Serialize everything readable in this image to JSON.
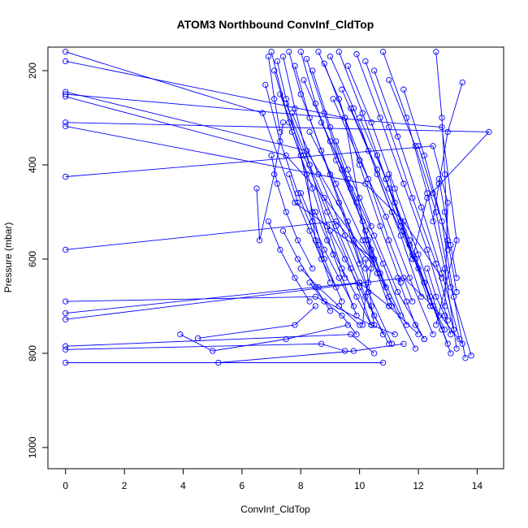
{
  "chart_data": {
    "type": "line",
    "title": "ATOM3 Northbound ConvInf_CldTop",
    "xlabel": "ConvInf_CldTop",
    "ylabel": "Pressure (mbar)",
    "xlim": [
      -0.6,
      14.9
    ],
    "ylim": [
      1045,
      150
    ],
    "y_reversed": true,
    "x_ticks": [
      0,
      2,
      4,
      6,
      8,
      10,
      12,
      14
    ],
    "y_ticks": [
      200,
      400,
      600,
      800,
      1000
    ],
    "grid": false,
    "legend": "none",
    "marker": "open-circle",
    "line_color": "#0000ff",
    "series": [
      {
        "x": [
          0,
          6.7,
          7.8,
          10.5
        ],
        "y": [
          160,
          290,
          480,
          600
        ]
      },
      {
        "x": [
          0,
          9.5,
          10.2,
          11.0
        ],
        "y": [
          180,
          300,
          560,
          700
        ]
      },
      {
        "x": [
          0,
          8.2,
          9.6,
          10.2
        ],
        "y": [
          245,
          370,
          520,
          620
        ]
      },
      {
        "x": [
          0,
          12.8,
          13.3,
          12.6
        ],
        "y": [
          250,
          320,
          560,
          740
        ]
      },
      {
        "x": [
          0,
          7.5,
          8.8,
          10.4
        ],
        "y": [
          255,
          380,
          470,
          600
        ]
      },
      {
        "x": [
          0,
          14.4,
          12.3,
          11.8
        ],
        "y": [
          310,
          330,
          470,
          600
        ]
      },
      {
        "x": [
          0,
          10.2,
          11.5,
          12.8
        ],
        "y": [
          318,
          440,
          520,
          640
        ]
      },
      {
        "x": [
          0,
          12.5,
          13.0,
          12.9
        ],
        "y": [
          425,
          360,
          480,
          700
        ]
      },
      {
        "x": [
          0,
          9.2,
          10.7,
          11.4
        ],
        "y": [
          580,
          520,
          630,
          720
        ]
      },
      {
        "x": [
          0,
          8.5,
          10.4,
          11.2
        ],
        "y": [
          690,
          680,
          740,
          760
        ]
      },
      {
        "x": [
          0,
          10.0,
          11.0,
          12.0
        ],
        "y": [
          715,
          650,
          700,
          760
        ]
      },
      {
        "x": [
          0,
          11.5,
          12.5,
          13.5
        ],
        "y": [
          728,
          640,
          700,
          780
        ]
      },
      {
        "x": [
          0,
          9.7,
          10.5
        ],
        "y": [
          785,
          760,
          800
        ]
      },
      {
        "x": [
          0,
          8.7,
          9.5
        ],
        "y": [
          792,
          780,
          795
        ]
      },
      {
        "x": [
          0,
          10.8
        ],
        "y": [
          820,
          820
        ]
      },
      {
        "x": [
          5.2,
          9.8,
          11.5
        ],
        "y": [
          820,
          795,
          780
        ]
      },
      {
        "x": [
          3.9,
          5.0,
          7.5,
          9.6
        ],
        "y": [
          760,
          795,
          770,
          740
        ]
      },
      {
        "x": [
          4.5,
          7.8,
          8.5
        ],
        "y": [
          768,
          740,
          700
        ]
      },
      {
        "x": [
          6.5,
          6.6,
          7.1,
          7.4
        ],
        "y": [
          450,
          560,
          420,
          310
        ]
      },
      {
        "x": [
          6.9,
          7.1,
          7.3
        ],
        "y": [
          170,
          260,
          330
        ]
      },
      {
        "x": [
          7.0,
          7.6,
          8.2,
          8.5,
          9.0
        ],
        "y": [
          160,
          310,
          420,
          560,
          650
        ]
      },
      {
        "x": [
          7.2,
          7.5,
          8.0,
          8.4,
          8.8
        ],
        "y": [
          180,
          260,
          380,
          500,
          600
        ]
      },
      {
        "x": [
          7.4,
          7.8,
          8.3,
          8.9,
          9.5
        ],
        "y": [
          170,
          280,
          400,
          530,
          640
        ]
      },
      {
        "x": [
          7.6,
          8.0,
          8.7,
          9.3,
          10.0
        ],
        "y": [
          160,
          250,
          370,
          480,
          610
        ]
      },
      {
        "x": [
          7.8,
          8.3,
          9.0,
          9.8,
          10.3
        ],
        "y": [
          190,
          300,
          420,
          560,
          670
        ]
      },
      {
        "x": [
          8.0,
          8.5,
          9.2,
          10.1,
          10.6
        ],
        "y": [
          160,
          270,
          390,
          520,
          630
        ]
      },
      {
        "x": [
          8.2,
          8.8,
          9.4,
          10.2,
          10.9
        ],
        "y": [
          175,
          290,
          410,
          540,
          660
        ]
      },
      {
        "x": [
          8.4,
          9.0,
          9.7,
          10.4,
          11.1
        ],
        "y": [
          200,
          320,
          450,
          580,
          700
        ]
      },
      {
        "x": [
          8.6,
          9.3,
          10.0,
          10.7,
          11.4
        ],
        "y": [
          160,
          260,
          400,
          530,
          650
        ]
      },
      {
        "x": [
          8.8,
          9.5,
          10.3,
          11.0,
          11.8
        ],
        "y": [
          185,
          300,
          430,
          560,
          690
        ]
      },
      {
        "x": [
          9.0,
          9.8,
          10.6,
          11.4,
          12.1
        ],
        "y": [
          170,
          280,
          420,
          550,
          680
        ]
      },
      {
        "x": [
          9.3,
          10.1,
          10.9,
          11.7,
          12.4
        ],
        "y": [
          160,
          290,
          430,
          570,
          700
        ]
      },
      {
        "x": [
          9.6,
          10.4,
          11.2,
          12.0,
          12.7
        ],
        "y": [
          190,
          310,
          450,
          590,
          720
        ]
      },
      {
        "x": [
          9.9,
          10.7,
          11.5,
          12.3,
          13.0
        ],
        "y": [
          165,
          300,
          440,
          580,
          730
        ]
      },
      {
        "x": [
          10.2,
          11.0,
          11.8,
          12.6,
          13.2
        ],
        "y": [
          180,
          320,
          470,
          610,
          750
        ]
      },
      {
        "x": [
          10.5,
          11.3,
          12.1,
          12.8,
          13.4
        ],
        "y": [
          200,
          340,
          490,
          630,
          770
        ]
      },
      {
        "x": [
          10.8,
          11.6,
          12.3,
          12.9,
          13.3
        ],
        "y": [
          160,
          300,
          460,
          620,
          790
        ]
      },
      {
        "x": [
          11.0,
          11.9,
          12.6,
          13.1,
          13.8
        ],
        "y": [
          220,
          360,
          500,
          660,
          805
        ]
      },
      {
        "x": [
          11.5,
          12.2,
          12.8,
          13.2,
          13.6
        ],
        "y": [
          240,
          380,
          520,
          680,
          810
        ]
      },
      {
        "x": [
          12.6,
          12.8,
          12.9,
          13.0
        ],
        "y": [
          160,
          300,
          420,
          580
        ]
      },
      {
        "x": [
          13.5,
          13.0,
          12.7,
          12.5
        ],
        "y": [
          225,
          330,
          440,
          520
        ]
      },
      {
        "x": [
          12.0,
          12.5,
          13.0,
          13.3
        ],
        "y": [
          360,
          460,
          560,
          670
        ]
      },
      {
        "x": [
          6.8,
          7.3,
          7.9,
          8.6,
          9.4
        ],
        "y": [
          230,
          350,
          460,
          570,
          690
        ]
      },
      {
        "x": [
          7.1,
          7.7,
          8.4,
          9.1,
          9.9
        ],
        "y": [
          200,
          330,
          450,
          590,
          720
        ]
      },
      {
        "x": [
          7.3,
          8.1,
          8.9,
          9.7,
          10.4
        ],
        "y": [
          250,
          380,
          500,
          620,
          740
        ]
      },
      {
        "x": [
          7.5,
          8.3,
          9.2,
          10.0,
          10.8
        ],
        "y": [
          270,
          400,
          530,
          650,
          760
        ]
      },
      {
        "x": [
          7.7,
          8.6,
          9.5,
          10.3,
          11.1
        ],
        "y": [
          290,
          420,
          550,
          670,
          780
        ]
      },
      {
        "x": [
          8.1,
          9.0,
          9.9,
          10.8,
          11.6
        ],
        "y": [
          220,
          350,
          480,
          610,
          740
        ]
      },
      {
        "x": [
          8.3,
          9.2,
          10.1,
          11.0,
          11.9
        ],
        "y": [
          330,
          440,
          560,
          680,
          790
        ]
      },
      {
        "x": [
          8.7,
          9.6,
          10.5,
          11.3,
          12.2
        ],
        "y": [
          310,
          430,
          550,
          670,
          770
        ]
      },
      {
        "x": [
          9.1,
          10.0,
          10.9,
          11.7,
          12.5
        ],
        "y": [
          260,
          390,
          510,
          640,
          760
        ]
      },
      {
        "x": [
          9.4,
          10.3,
          11.1,
          12.0,
          12.8
        ],
        "y": [
          240,
          370,
          500,
          620,
          750
        ]
      },
      {
        "x": [
          9.7,
          10.6,
          11.4,
          12.2,
          13.0
        ],
        "y": [
          280,
          410,
          530,
          650,
          780
        ]
      },
      {
        "x": [
          10.0,
          10.9,
          11.7,
          12.4,
          13.1
        ],
        "y": [
          300,
          430,
          560,
          680,
          800
        ]
      },
      {
        "x": [
          7.0,
          7.2,
          7.5,
          7.9,
          8.4
        ],
        "y": [
          380,
          440,
          500,
          560,
          620
        ]
      },
      {
        "x": [
          7.6,
          7.9,
          8.3,
          8.7,
          9.2
        ],
        "y": [
          420,
          480,
          540,
          600,
          660
        ]
      },
      {
        "x": [
          8.0,
          8.4,
          8.8,
          9.3,
          9.8
        ],
        "y": [
          460,
          520,
          580,
          640,
          700
        ]
      },
      {
        "x": [
          8.5,
          8.9,
          9.4,
          9.9,
          10.4
        ],
        "y": [
          500,
          560,
          620,
          680,
          740
        ]
      },
      {
        "x": [
          9.0,
          9.5,
          10.0,
          10.5,
          11.0
        ],
        "y": [
          540,
          600,
          660,
          720,
          780
        ]
      },
      {
        "x": [
          10.2,
          10.3,
          10.4,
          10.5
        ],
        "y": [
          600,
          650,
          700,
          740
        ]
      },
      {
        "x": [
          10.3,
          10.4,
          10.2,
          10.1
        ],
        "y": [
          560,
          620,
          680,
          740
        ]
      },
      {
        "x": [
          11.9,
          12.2,
          12.5,
          12.9
        ],
        "y": [
          600,
          650,
          700,
          750
        ]
      },
      {
        "x": [
          12.3,
          12.6,
          12.9,
          13.1
        ],
        "y": [
          620,
          680,
          720,
          760
        ]
      },
      {
        "x": [
          11.3,
          11.6,
          11.9,
          12.2
        ],
        "y": [
          640,
          690,
          740,
          770
        ]
      },
      {
        "x": [
          8.0,
          8.6,
          9.3,
          10.0
        ],
        "y": [
          620,
          660,
          700,
          740
        ]
      },
      {
        "x": [
          8.3,
          8.8,
          9.4,
          9.9
        ],
        "y": [
          650,
          690,
          720,
          760
        ]
      },
      {
        "x": [
          6.9,
          7.3,
          7.8,
          8.3
        ],
        "y": [
          520,
          580,
          640,
          690
        ]
      },
      {
        "x": [
          7.4,
          7.9,
          8.5,
          9.0
        ],
        "y": [
          540,
          600,
          660,
          710
        ]
      },
      {
        "x": [
          12.7,
          12.9,
          13.1,
          13.3
        ],
        "y": [
          430,
          500,
          570,
          640
        ]
      },
      {
        "x": [
          11.0,
          11.2,
          11.5,
          11.8
        ],
        "y": [
          420,
          480,
          540,
          600
        ]
      },
      {
        "x": [
          10.6,
          11.0,
          11.4,
          11.8
        ],
        "y": [
          380,
          450,
          520,
          590
        ]
      },
      {
        "x": [
          9.2,
          9.6,
          10.0,
          10.4
        ],
        "y": [
          350,
          410,
          470,
          530
        ]
      }
    ]
  }
}
